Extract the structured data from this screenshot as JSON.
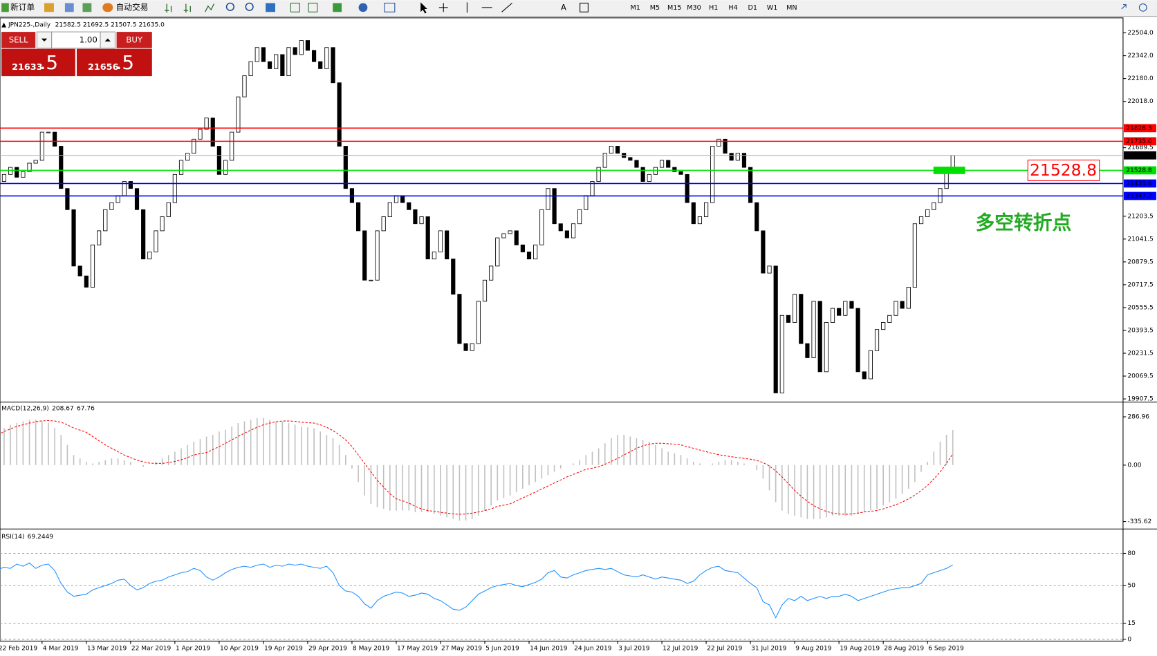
{
  "toolbar": {
    "new_order": "新订单",
    "auto_trading": "自动交易",
    "periods": [
      "M1",
      "M5",
      "M15",
      "M30",
      "H1",
      "H4",
      "D1",
      "W1",
      "MN"
    ]
  },
  "trade_panel": {
    "sell": "SELL",
    "buy": "BUY",
    "volume": "1.00",
    "sell_price": "21633",
    "sell_frac": ".5",
    "buy_price": "21656",
    "buy_frac": ".5"
  },
  "chart_data": [
    {
      "type": "candlestick",
      "title": "JPN225-,Daily",
      "subtitle": "21582.5 21692.5 21507.5 21635.0",
      "categories": [
        "22 Feb 2019",
        null,
        null,
        null,
        null,
        null,
        null,
        "4 Mar 2019",
        null,
        null,
        null,
        null,
        null,
        null,
        "13 Mar 2019",
        null,
        null,
        null,
        null,
        null,
        null,
        "22 Mar 2019",
        null,
        null,
        null,
        null,
        null,
        null,
        "1 Apr 2019",
        null,
        null,
        null,
        null,
        null,
        null,
        "10 Apr 2019",
        null,
        null,
        null,
        null,
        null,
        null,
        "19 Apr 2019",
        null,
        null,
        null,
        null,
        null,
        null,
        "29 Apr 2019",
        null,
        null,
        null,
        null,
        null,
        null,
        "8 May 2019",
        null,
        null,
        null,
        null,
        null,
        null,
        "17 May 2019",
        null,
        null,
        null,
        null,
        null,
        null,
        "27 May 2019",
        null,
        null,
        null,
        null,
        null,
        null,
        "5 Jun 2019",
        null,
        null,
        null,
        null,
        null,
        null,
        "14 Jun 2019",
        null,
        null,
        null,
        null,
        null,
        null,
        "24 Jun 2019",
        null,
        null,
        null,
        null,
        null,
        null,
        "3 Jul 2019",
        null,
        null,
        null,
        null,
        null,
        null,
        "12 Jul 2019",
        null,
        null,
        null,
        null,
        null,
        null,
        "22 Jul 2019",
        null,
        null,
        null,
        null,
        null,
        null,
        "31 Jul 2019",
        null,
        null,
        null,
        null,
        null,
        null,
        "9 Aug 2019",
        null,
        null,
        null,
        null,
        null,
        null,
        "19 Aug 2019",
        null,
        null,
        null,
        null,
        null,
        null,
        "28 Aug 2019",
        null,
        null,
        null,
        null,
        null,
        null,
        "6 Sep 2019",
        null,
        null,
        null,
        null
      ],
      "values": [
        21450,
        21500,
        21550,
        21480,
        21520,
        21580,
        21600,
        21800,
        21800,
        21700,
        21400,
        21250,
        20850,
        20780,
        20700,
        21000,
        21100,
        21250,
        21300,
        21350,
        21450,
        21400,
        21250,
        20900,
        20950,
        21100,
        21200,
        21300,
        21500,
        21600,
        21650,
        21750,
        21820,
        21900,
        21700,
        21500,
        21600,
        21800,
        22050,
        22200,
        22300,
        22400,
        22300,
        22250,
        22350,
        22200,
        22400,
        22350,
        22450,
        22380,
        22300,
        22250,
        22400,
        22150,
        21700,
        21400,
        21300,
        21100,
        20750,
        20750,
        21100,
        21200,
        21300,
        21350,
        21300,
        21250,
        21150,
        21200,
        20900,
        20950,
        21100,
        20900,
        20650,
        20300,
        20250,
        20300,
        20600,
        20750,
        20850,
        21050,
        21080,
        21100,
        21000,
        20950,
        20900,
        21000,
        21250,
        21400,
        21150,
        21100,
        21050,
        21150,
        21250,
        21350,
        21450,
        21550,
        21650,
        21700,
        21650,
        21620,
        21600,
        21550,
        21450,
        21500,
        21550,
        21600,
        21550,
        21520,
        21500,
        21300,
        21150,
        21200,
        21300,
        21700,
        21750,
        21650,
        21600,
        21650,
        21550,
        21300,
        21100,
        20800,
        20850,
        19950,
        20500,
        20450,
        20650,
        20300,
        20200,
        20600,
        20100,
        20450,
        20550,
        20500,
        20600,
        20550,
        20100,
        20050,
        20250,
        20400,
        20450,
        20500,
        20600,
        20550,
        20700,
        21150,
        21200,
        21250,
        21300,
        21400,
        21550,
        21635
      ],
      "up_color": "#ffffff",
      "down_color": "#000000",
      "ylim": [
        19890,
        22600
      ],
      "yticks": [
        {
          "value": 22504,
          "label": "22504.0"
        },
        {
          "value": 22342,
          "label": "22342.0"
        },
        {
          "value": 22180,
          "label": "22180.0"
        },
        {
          "value": 22018,
          "label": "22018.0"
        },
        21689.5,
        21203.5,
        21041.5,
        20879.5,
        20717.5,
        20555.5,
        20393.5,
        20231.5,
        20069.5,
        19907.5
      ],
      "levels": [
        {
          "value": 21828.3,
          "color": "#ff0000"
        },
        {
          "value": 21735,
          "label": "21735.0",
          "color": "#ff0000"
        },
        {
          "value": 21528.8,
          "color": "#00e000"
        },
        {
          "value": 21435.6,
          "color": "#0000ff"
        },
        {
          "value": 21347.2,
          "color": "#0000ff"
        }
      ],
      "current_price": {
        "value": 21635,
        "label": "21635.0"
      },
      "callout": 21528.8,
      "pivot_text": "多空转折点"
    },
    {
      "type": "macd",
      "title": "MACD(12,26,9)",
      "histogram": {
        "color": "#c0c0c0",
        "values": [
          200,
          220,
          240,
          250,
          260,
          270,
          270,
          260,
          250,
          220,
          180,
          120,
          60,
          40,
          20,
          10,
          20,
          30,
          40,
          40,
          30,
          20,
          0,
          -10,
          0,
          20,
          40,
          60,
          80,
          100,
          120,
          140,
          155,
          170,
          180,
          200,
          210,
          230,
          250,
          260,
          270,
          280,
          280,
          270,
          260,
          260,
          250,
          240,
          230,
          225,
          220,
          200,
          180,
          160,
          120,
          60,
          -20,
          -100,
          -180,
          -230,
          -250,
          -260,
          -270,
          -270,
          -270,
          -270,
          -280,
          -280,
          -280,
          -290,
          -300,
          -310,
          -320,
          -330,
          -330,
          -320,
          -300,
          -270,
          -240,
          -210,
          -195,
          -180,
          -160,
          -140,
          -120,
          -100,
          -80,
          -60,
          -40,
          -20,
          0,
          10,
          30,
          60,
          80,
          100,
          130,
          160,
          180,
          180,
          170,
          160,
          150,
          140,
          120,
          100,
          80,
          70,
          60,
          40,
          20,
          10,
          0,
          10,
          20,
          30,
          30,
          20,
          10,
          0,
          -30,
          -80,
          -150,
          -220,
          -270,
          -290,
          -300,
          -310,
          -320,
          -320,
          -320,
          -310,
          -300,
          -300,
          -300,
          -300,
          -290,
          -280,
          -270,
          -260,
          -240,
          -220,
          -200,
          -170,
          -140,
          -100,
          -40,
          20,
          80,
          140,
          180,
          208.67
        ]
      },
      "signal": {
        "color": "#ff0000",
        "values": [
          180,
          200,
          215,
          230,
          240,
          250,
          258,
          263,
          265,
          262,
          255,
          240,
          220,
          208,
          195,
          170,
          145,
          120,
          100,
          80,
          60,
          45,
          30,
          20,
          12,
          10,
          10,
          15,
          22,
          32,
          45,
          60,
          68,
          75,
          92,
          110,
          130,
          150,
          170,
          190,
          208,
          225,
          240,
          250,
          258,
          262,
          262,
          260,
          255,
          252,
          250,
          240,
          225,
          205,
          180,
          150,
          110,
          60,
          10,
          -40,
          -90,
          -130,
          -170,
          -200,
          -212,
          -225,
          -245,
          -260,
          -270,
          -275,
          -280,
          -285,
          -290,
          -292,
          -290,
          -285,
          -278,
          -270,
          -260,
          -245,
          -238,
          -230,
          -212,
          -195,
          -178,
          -160,
          -142,
          -124,
          -106,
          -88,
          -70,
          -55,
          -40,
          -25,
          -18,
          -10,
          5,
          22,
          40,
          60,
          80,
          100,
          115,
          125,
          130,
          130,
          127,
          124,
          120,
          110,
          100,
          90,
          80,
          70,
          62,
          56,
          50,
          45,
          40,
          35,
          28,
          15,
          -5,
          -35,
          -70,
          -110,
          -150,
          -185,
          -215,
          -240,
          -260,
          -275,
          -285,
          -290,
          -292,
          -290,
          -285,
          -278,
          -274,
          -270,
          -260,
          -248,
          -235,
          -220,
          -200,
          -178,
          -152,
          -120,
          -82,
          -40,
          10,
          67.76
        ]
      },
      "ylim": [
        -375,
        370
      ],
      "yticks": [
        286.96,
        {
          "value": 0,
          "label": "0.00"
        },
        -335.62
      ]
    },
    {
      "type": "line",
      "title": "RSI(14)",
      "color": "#1e90ff",
      "values": [
        65,
        67,
        66,
        70,
        68,
        71,
        66,
        69,
        70,
        64,
        52,
        44,
        40,
        41,
        42,
        46,
        48,
        50,
        52,
        55,
        56,
        50,
        46,
        48,
        52,
        54,
        55,
        58,
        60,
        62,
        63,
        66,
        64,
        58,
        55,
        58,
        62,
        65,
        67,
        68,
        67,
        69,
        70,
        67,
        69,
        68,
        70,
        69,
        70,
        68,
        67,
        66,
        68,
        62,
        50,
        45,
        44,
        40,
        33,
        29,
        36,
        40,
        42,
        44,
        43,
        40,
        41,
        43,
        42,
        38,
        36,
        32,
        28,
        27,
        30,
        36,
        42,
        45,
        48,
        50,
        51,
        52,
        50,
        49,
        51,
        53,
        56,
        62,
        64,
        58,
        57,
        60,
        62,
        64,
        65,
        66,
        65,
        66,
        63,
        60,
        59,
        58,
        60,
        58,
        56,
        58,
        57,
        56,
        55,
        52,
        54,
        60,
        64,
        67,
        68,
        64,
        63,
        62,
        57,
        52,
        48,
        35,
        32,
        20,
        32,
        38,
        36,
        40,
        36,
        38,
        40,
        38,
        40,
        40,
        42,
        40,
        36,
        38,
        40,
        42,
        44,
        46,
        47,
        48,
        48,
        50,
        52,
        60,
        62,
        64,
        66,
        69.2449
      ],
      "ylim": [
        -1,
        102
      ],
      "yticks": [
        80,
        50,
        15,
        0
      ],
      "grid": true
    }
  ]
}
